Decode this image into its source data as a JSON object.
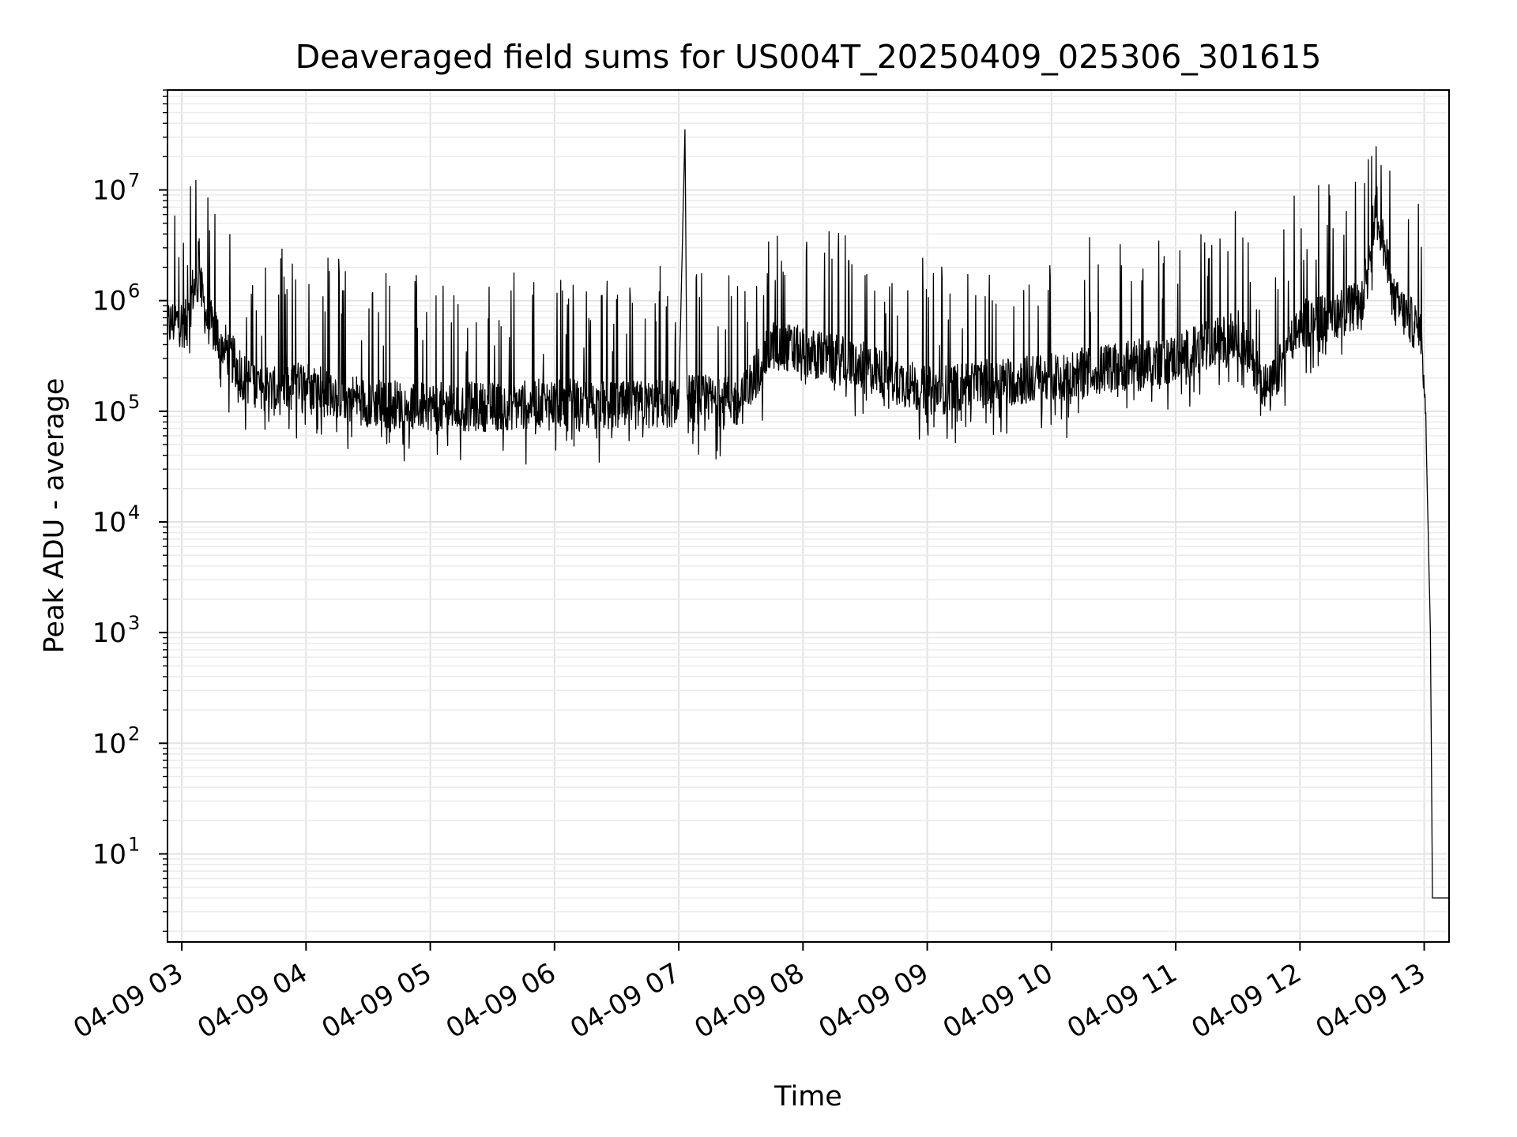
{
  "chart_data": {
    "type": "line",
    "title": "Deaveraged field sums for US004T_20250409_025306_301615",
    "xlabel": "Time",
    "ylabel": "Peak ADU - average",
    "x_axis": {
      "type": "datetime",
      "range": [
        "2025-04-09T02:53:06",
        "2025-04-09T13:12:00"
      ],
      "ticks": [
        {
          "value": "2025-04-09T03:00",
          "label": "04-09 03"
        },
        {
          "value": "2025-04-09T04:00",
          "label": "04-09 04"
        },
        {
          "value": "2025-04-09T05:00",
          "label": "04-09 05"
        },
        {
          "value": "2025-04-09T06:00",
          "label": "04-09 06"
        },
        {
          "value": "2025-04-09T07:00",
          "label": "04-09 07"
        },
        {
          "value": "2025-04-09T08:00",
          "label": "04-09 08"
        },
        {
          "value": "2025-04-09T09:00",
          "label": "04-09 09"
        },
        {
          "value": "2025-04-09T10:00",
          "label": "04-09 10"
        },
        {
          "value": "2025-04-09T11:00",
          "label": "04-09 11"
        },
        {
          "value": "2025-04-09T12:00",
          "label": "04-09 12"
        },
        {
          "value": "2025-04-09T13:00",
          "label": "04-09 13"
        }
      ]
    },
    "y_axis": {
      "scale": "log",
      "range": [
        1.6,
        80000000
      ],
      "ticks": [
        {
          "value": 10,
          "base": "10",
          "exp": "1"
        },
        {
          "value": 100,
          "base": "10",
          "exp": "2"
        },
        {
          "value": 1000,
          "base": "10",
          "exp": "3"
        },
        {
          "value": 10000,
          "base": "10",
          "exp": "4"
        },
        {
          "value": 100000,
          "base": "10",
          "exp": "5"
        },
        {
          "value": 1000000,
          "base": "10",
          "exp": "6"
        },
        {
          "value": 10000000,
          "base": "10",
          "exp": "7"
        }
      ]
    },
    "grid": true,
    "series": [
      {
        "color": "#000000",
        "points": [
          [
            "2025-04-09T02:53",
            600000
          ],
          [
            "2025-04-09T02:58",
            650000
          ],
          [
            "2025-04-09T03:03",
            600000
          ],
          [
            "2025-04-09T03:05",
            1200000
          ],
          [
            "2025-04-09T03:08",
            1500000
          ],
          [
            "2025-04-09T03:08",
            5000000
          ],
          [
            "2025-04-09T03:09",
            1300000
          ],
          [
            "2025-04-09T03:12",
            700000
          ],
          [
            "2025-04-09T03:20",
            400000
          ],
          [
            "2025-04-09T03:30",
            200000
          ],
          [
            "2025-04-09T03:45",
            150000
          ],
          [
            "2025-04-09T04:00",
            180000
          ],
          [
            "2025-04-09T04:30",
            120000
          ],
          [
            "2025-04-09T05:00",
            110000
          ],
          [
            "2025-04-09T05:30",
            110000
          ],
          [
            "2025-04-09T06:00",
            120000
          ],
          [
            "2025-04-09T06:30",
            110000
          ],
          [
            "2025-04-09T07:00",
            120000
          ],
          [
            "2025-04-09T07:03",
            35000000
          ],
          [
            "2025-04-09T07:04",
            130000
          ],
          [
            "2025-04-09T07:30",
            120000
          ],
          [
            "2025-04-09T07:45",
            400000
          ],
          [
            "2025-04-09T08:00",
            350000
          ],
          [
            "2025-04-09T08:30",
            250000
          ],
          [
            "2025-04-09T09:00",
            150000
          ],
          [
            "2025-04-09T09:30",
            180000
          ],
          [
            "2025-04-09T10:00",
            200000
          ],
          [
            "2025-04-09T10:30",
            250000
          ],
          [
            "2025-04-09T11:00",
            300000
          ],
          [
            "2025-04-09T11:30",
            500000
          ],
          [
            "2025-04-09T11:45",
            150000
          ],
          [
            "2025-04-09T12:00",
            600000
          ],
          [
            "2025-04-09T12:30",
            900000
          ],
          [
            "2025-04-09T12:37",
            7500000
          ],
          [
            "2025-04-09T12:45",
            1000000
          ],
          [
            "2025-04-09T12:59",
            500000
          ],
          [
            "2025-04-09T13:01",
            50000
          ],
          [
            "2025-04-09T13:03",
            1000
          ],
          [
            "2025-04-09T13:04",
            4
          ],
          [
            "2025-04-09T13:12",
            4
          ]
        ]
      }
    ]
  }
}
